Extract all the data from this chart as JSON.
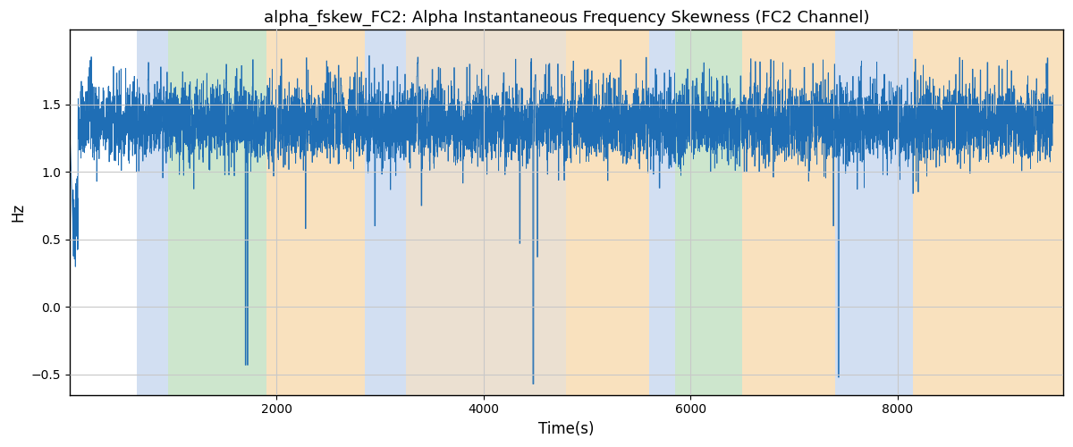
{
  "title": "alpha_fskew_FC2: Alpha Instantaneous Frequency Skewness (FC2 Channel)",
  "xlabel": "Time(s)",
  "ylabel": "Hz",
  "ylim": [
    -0.65,
    2.05
  ],
  "yticks": [
    -0.5,
    0.0,
    0.5,
    1.0,
    1.5
  ],
  "xlim": [
    0,
    9600
  ],
  "xticks": [
    2000,
    4000,
    6000,
    8000
  ],
  "line_color": "#1f6eb5",
  "line_width": 0.6,
  "background_color": "#ffffff",
  "grid_color": "#c8c8c8",
  "bg_bands": [
    {
      "xmin": 650,
      "xmax": 950,
      "color": "#aec6e8",
      "alpha": 0.55
    },
    {
      "xmin": 950,
      "xmax": 1900,
      "color": "#90c990",
      "alpha": 0.45
    },
    {
      "xmin": 1900,
      "xmax": 2850,
      "color": "#f5c98a",
      "alpha": 0.55
    },
    {
      "xmin": 2850,
      "xmax": 3250,
      "color": "#aec6e8",
      "alpha": 0.55
    },
    {
      "xmin": 3250,
      "xmax": 4800,
      "color": "#aec6e8",
      "alpha": 0.3
    },
    {
      "xmin": 3250,
      "xmax": 4800,
      "color": "#f5c98a",
      "alpha": 0.35
    },
    {
      "xmin": 4800,
      "xmax": 5600,
      "color": "#f5c98a",
      "alpha": 0.55
    },
    {
      "xmin": 5600,
      "xmax": 5850,
      "color": "#aec6e8",
      "alpha": 0.55
    },
    {
      "xmin": 5850,
      "xmax": 6500,
      "color": "#90c990",
      "alpha": 0.45
    },
    {
      "xmin": 6500,
      "xmax": 7400,
      "color": "#f5c98a",
      "alpha": 0.55
    },
    {
      "xmin": 7400,
      "xmax": 8150,
      "color": "#aec6e8",
      "alpha": 0.55
    },
    {
      "xmin": 8150,
      "xmax": 9600,
      "color": "#f5c98a",
      "alpha": 0.55
    }
  ],
  "seed": 42,
  "n_points": 9500,
  "base_value": 1.35,
  "noise_std": 0.13
}
